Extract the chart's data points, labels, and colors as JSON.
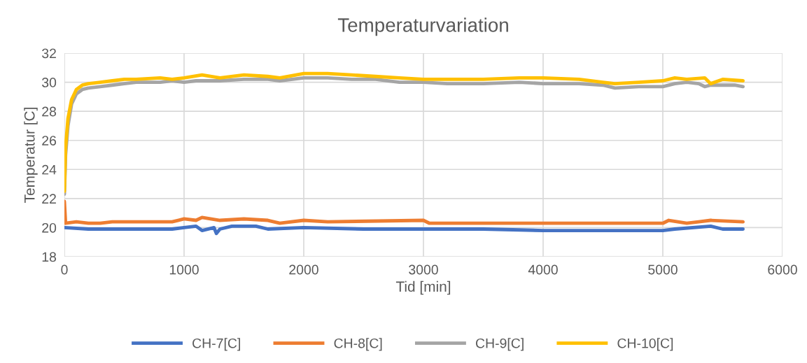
{
  "chart_data": {
    "type": "line",
    "title": "Temperaturvariation",
    "xlabel": "Tid [min]",
    "ylabel": "Temperatur [C]",
    "xlim": [
      0,
      6000
    ],
    "xticks": [
      0,
      1000,
      2000,
      3000,
      4000,
      5000,
      6000
    ],
    "ylim": [
      18,
      32
    ],
    "yticks": [
      18,
      20,
      22,
      24,
      26,
      28,
      30,
      32
    ],
    "grid": true,
    "legend": "bottom",
    "marker": "none",
    "line_style": "solid",
    "series": [
      {
        "name": "CH-7[C]",
        "color": "#4472c4",
        "x": [
          0,
          200,
          400,
          900,
          1000,
          1100,
          1150,
          1250,
          1270,
          1300,
          1400,
          1600,
          1700,
          2000,
          2500,
          3000,
          3500,
          4000,
          4500,
          5000,
          5100,
          5400,
          5500,
          5670
        ],
        "values": [
          20.0,
          19.9,
          19.9,
          19.9,
          20.0,
          20.1,
          19.8,
          20.0,
          19.6,
          19.9,
          20.1,
          20.1,
          19.9,
          20.0,
          19.9,
          19.9,
          19.9,
          19.8,
          19.8,
          19.8,
          19.9,
          20.1,
          19.9,
          19.9
        ]
      },
      {
        "name": "CH-8[C]",
        "color": "#ed7d31",
        "x": [
          0,
          10,
          100,
          200,
          300,
          400,
          900,
          1000,
          1100,
          1150,
          1300,
          1500,
          1700,
          1800,
          2000,
          2200,
          3000,
          3050,
          4000,
          4200,
          5000,
          5050,
          5200,
          5300,
          5400,
          5670
        ],
        "values": [
          21.8,
          20.3,
          20.4,
          20.3,
          20.3,
          20.4,
          20.4,
          20.6,
          20.5,
          20.7,
          20.5,
          20.6,
          20.5,
          20.3,
          20.5,
          20.4,
          20.5,
          20.3,
          20.3,
          20.3,
          20.3,
          20.5,
          20.3,
          20.4,
          20.5,
          20.4
        ]
      },
      {
        "name": "CH-9[C]",
        "color": "#a5a5a5",
        "x": [
          0,
          10,
          30,
          60,
          100,
          150,
          200,
          300,
          400,
          500,
          600,
          800,
          900,
          1000,
          1100,
          1300,
          1500,
          1700,
          1800,
          2000,
          2200,
          2400,
          2600,
          2800,
          3000,
          3200,
          3500,
          3800,
          4000,
          4300,
          4500,
          4600,
          4800,
          5000,
          5100,
          5200,
          5300,
          5350,
          5400,
          5600,
          5670
        ],
        "values": [
          22.3,
          25.0,
          27.0,
          28.5,
          29.2,
          29.5,
          29.6,
          29.7,
          29.8,
          29.9,
          30.0,
          30.0,
          30.1,
          30.0,
          30.1,
          30.1,
          30.2,
          30.2,
          30.1,
          30.3,
          30.3,
          30.2,
          30.2,
          30.0,
          30.0,
          29.9,
          29.9,
          30.0,
          29.9,
          29.9,
          29.8,
          29.6,
          29.7,
          29.7,
          29.9,
          30.0,
          29.9,
          29.7,
          29.8,
          29.8,
          29.7
        ]
      },
      {
        "name": "CH-10[C]",
        "color": "#ffc000",
        "x": [
          0,
          10,
          30,
          60,
          100,
          150,
          200,
          300,
          400,
          500,
          600,
          800,
          900,
          1000,
          1150,
          1300,
          1500,
          1700,
          1800,
          2000,
          2100,
          2200,
          2400,
          2600,
          2800,
          3000,
          3200,
          3500,
          3800,
          4000,
          4300,
          4500,
          4600,
          4800,
          5000,
          5100,
          5200,
          5350,
          5400,
          5500,
          5670
        ],
        "values": [
          22.5,
          25.5,
          27.5,
          28.8,
          29.5,
          29.8,
          29.9,
          30.0,
          30.1,
          30.2,
          30.2,
          30.3,
          30.2,
          30.3,
          30.5,
          30.3,
          30.5,
          30.4,
          30.3,
          30.6,
          30.6,
          30.6,
          30.5,
          30.4,
          30.3,
          30.2,
          30.2,
          30.2,
          30.3,
          30.3,
          30.2,
          30.0,
          29.9,
          30.0,
          30.1,
          30.3,
          30.2,
          30.3,
          29.9,
          30.2,
          30.1
        ]
      }
    ]
  }
}
